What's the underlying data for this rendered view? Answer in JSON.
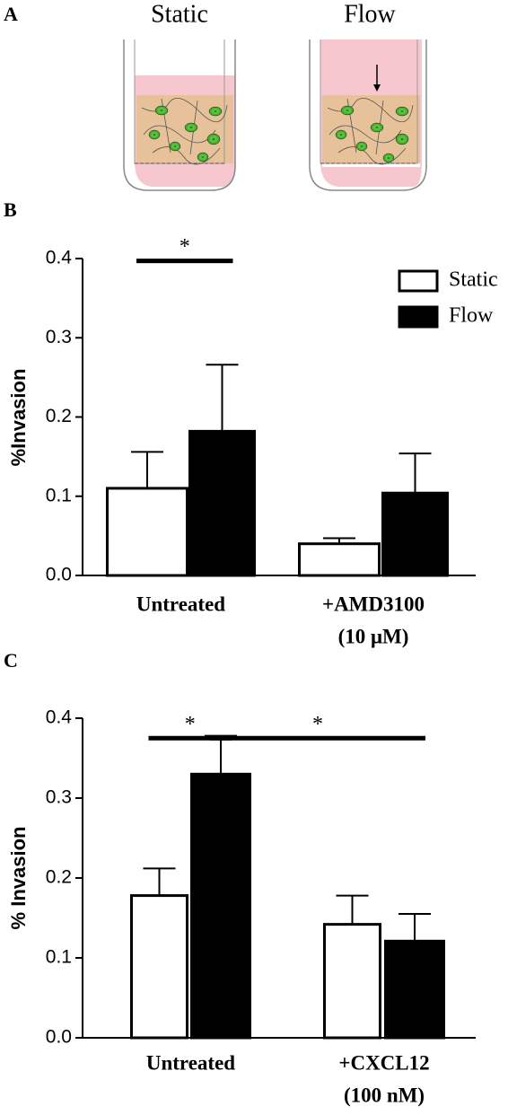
{
  "figure": {
    "panel_labels": [
      "A",
      "B",
      "C"
    ],
    "diagram": {
      "labels": [
        "Static",
        "Flow"
      ]
    }
  },
  "chart_data": [
    {
      "type": "bar",
      "ylabel": "%Invasion",
      "categories": [
        "Untreated",
        "+AMD3100"
      ],
      "category_sublabels": [
        null,
        "(10 μM)"
      ],
      "series": [
        {
          "name": "Static",
          "color": "#ffffff",
          "edgecolor": "#000000",
          "values": [
            0.11,
            0.04
          ],
          "errors": [
            0.046,
            0.007
          ]
        },
        {
          "name": "Flow",
          "color": "#000000",
          "edgecolor": "#000000",
          "values": [
            0.182,
            0.104
          ],
          "errors": [
            0.084,
            0.05
          ]
        }
      ],
      "ylim": [
        0,
        0.4
      ],
      "yticks": [
        {
          "value": 0,
          "label": "0.0"
        },
        0.1,
        0.2,
        0.3,
        0.4
      ],
      "legend": "upper right",
      "annotations": [
        {
          "text": "*",
          "y": 0.397,
          "span": [
            [
              0,
              0
            ],
            [
              0,
              1
            ]
          ]
        }
      ]
    },
    {
      "type": "bar",
      "ylabel": "% Invasion",
      "categories": [
        "Untreated",
        "+CXCL12"
      ],
      "category_sublabels": [
        null,
        "(100 nM)"
      ],
      "series": [
        {
          "name": null,
          "color": "#ffffff",
          "edgecolor": "#000000",
          "values": [
            0.178,
            0.142
          ],
          "errors": [
            0.034,
            0.036
          ]
        },
        {
          "name": null,
          "color": "#000000",
          "edgecolor": "#000000",
          "values": [
            0.33,
            0.121
          ],
          "errors": [
            0.048,
            0.034
          ]
        }
      ],
      "ylim": [
        0,
        0.4
      ],
      "yticks": [
        {
          "value": 0,
          "label": "0.0"
        },
        0.1,
        0.2,
        0.3,
        0.4
      ],
      "annotations": [
        {
          "text": "*",
          "y": 0.375,
          "span": [
            [
              0,
              0
            ],
            [
              0,
              1
            ]
          ]
        },
        {
          "text": "*",
          "y": 0.375,
          "span": [
            [
              0,
              1
            ],
            [
              1,
              1
            ]
          ]
        }
      ]
    }
  ]
}
